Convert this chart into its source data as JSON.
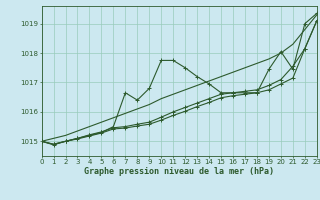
{
  "title": "Graphe pression niveau de la mer (hPa)",
  "bg_color": "#cce8f0",
  "grid_color": "#99ccbb",
  "line_color": "#2d5a2d",
  "x_min": 0,
  "x_max": 23,
  "y_min": 1014.5,
  "y_max": 1019.6,
  "yticks": [
    1015,
    1016,
    1017,
    1018,
    1019
  ],
  "xticks": [
    0,
    1,
    2,
    3,
    4,
    5,
    6,
    7,
    8,
    9,
    10,
    11,
    12,
    13,
    14,
    15,
    16,
    17,
    18,
    19,
    20,
    21,
    22,
    23
  ],
  "series": [
    {
      "x": [
        0,
        1,
        2,
        3,
        4,
        5,
        6,
        7,
        8,
        9,
        10,
        11,
        12,
        13,
        14,
        15,
        16,
        17,
        18,
        19,
        20,
        21,
        22,
        23
      ],
      "y": [
        1015.0,
        1015.1,
        1015.2,
        1015.35,
        1015.5,
        1015.65,
        1015.8,
        1015.95,
        1016.1,
        1016.25,
        1016.45,
        1016.6,
        1016.75,
        1016.9,
        1017.05,
        1017.2,
        1017.35,
        1017.5,
        1017.65,
        1017.8,
        1018.0,
        1018.3,
        1018.8,
        1019.3
      ],
      "marker": false
    },
    {
      "x": [
        0,
        1,
        2,
        3,
        4,
        5,
        6,
        7,
        8,
        9,
        10,
        11,
        12,
        13,
        14,
        15,
        16,
        17,
        18,
        19,
        20,
        21,
        22,
        23
      ],
      "y": [
        1015.0,
        1014.9,
        1015.0,
        1015.1,
        1015.2,
        1015.3,
        1015.5,
        1016.65,
        1016.4,
        1016.8,
        1017.75,
        1017.75,
        1017.5,
        1017.2,
        1016.95,
        1016.65,
        1016.65,
        1016.65,
        1016.65,
        1017.45,
        1018.05,
        1017.45,
        1019.0,
        1019.35
      ],
      "marker": true
    },
    {
      "x": [
        0,
        1,
        2,
        3,
        4,
        5,
        6,
        7,
        8,
        9,
        10,
        11,
        12,
        13,
        14,
        15,
        16,
        17,
        18,
        19,
        20,
        21,
        22,
        23
      ],
      "y": [
        1015.0,
        1014.88,
        1015.0,
        1015.08,
        1015.18,
        1015.28,
        1015.42,
        1015.45,
        1015.52,
        1015.58,
        1015.72,
        1015.88,
        1016.02,
        1016.18,
        1016.32,
        1016.48,
        1016.55,
        1016.6,
        1016.65,
        1016.75,
        1016.95,
        1017.15,
        1018.15,
        1019.1
      ],
      "marker": true
    },
    {
      "x": [
        0,
        1,
        2,
        3,
        4,
        5,
        6,
        7,
        8,
        9,
        10,
        11,
        12,
        13,
        14,
        15,
        16,
        17,
        18,
        19,
        20,
        21,
        22,
        23
      ],
      "y": [
        1015.0,
        1014.9,
        1015.0,
        1015.1,
        1015.22,
        1015.32,
        1015.46,
        1015.5,
        1015.58,
        1015.65,
        1015.82,
        1016.0,
        1016.15,
        1016.3,
        1016.45,
        1016.6,
        1016.65,
        1016.7,
        1016.75,
        1016.9,
        1017.1,
        1017.55,
        1018.15,
        1019.1
      ],
      "marker": true
    }
  ]
}
